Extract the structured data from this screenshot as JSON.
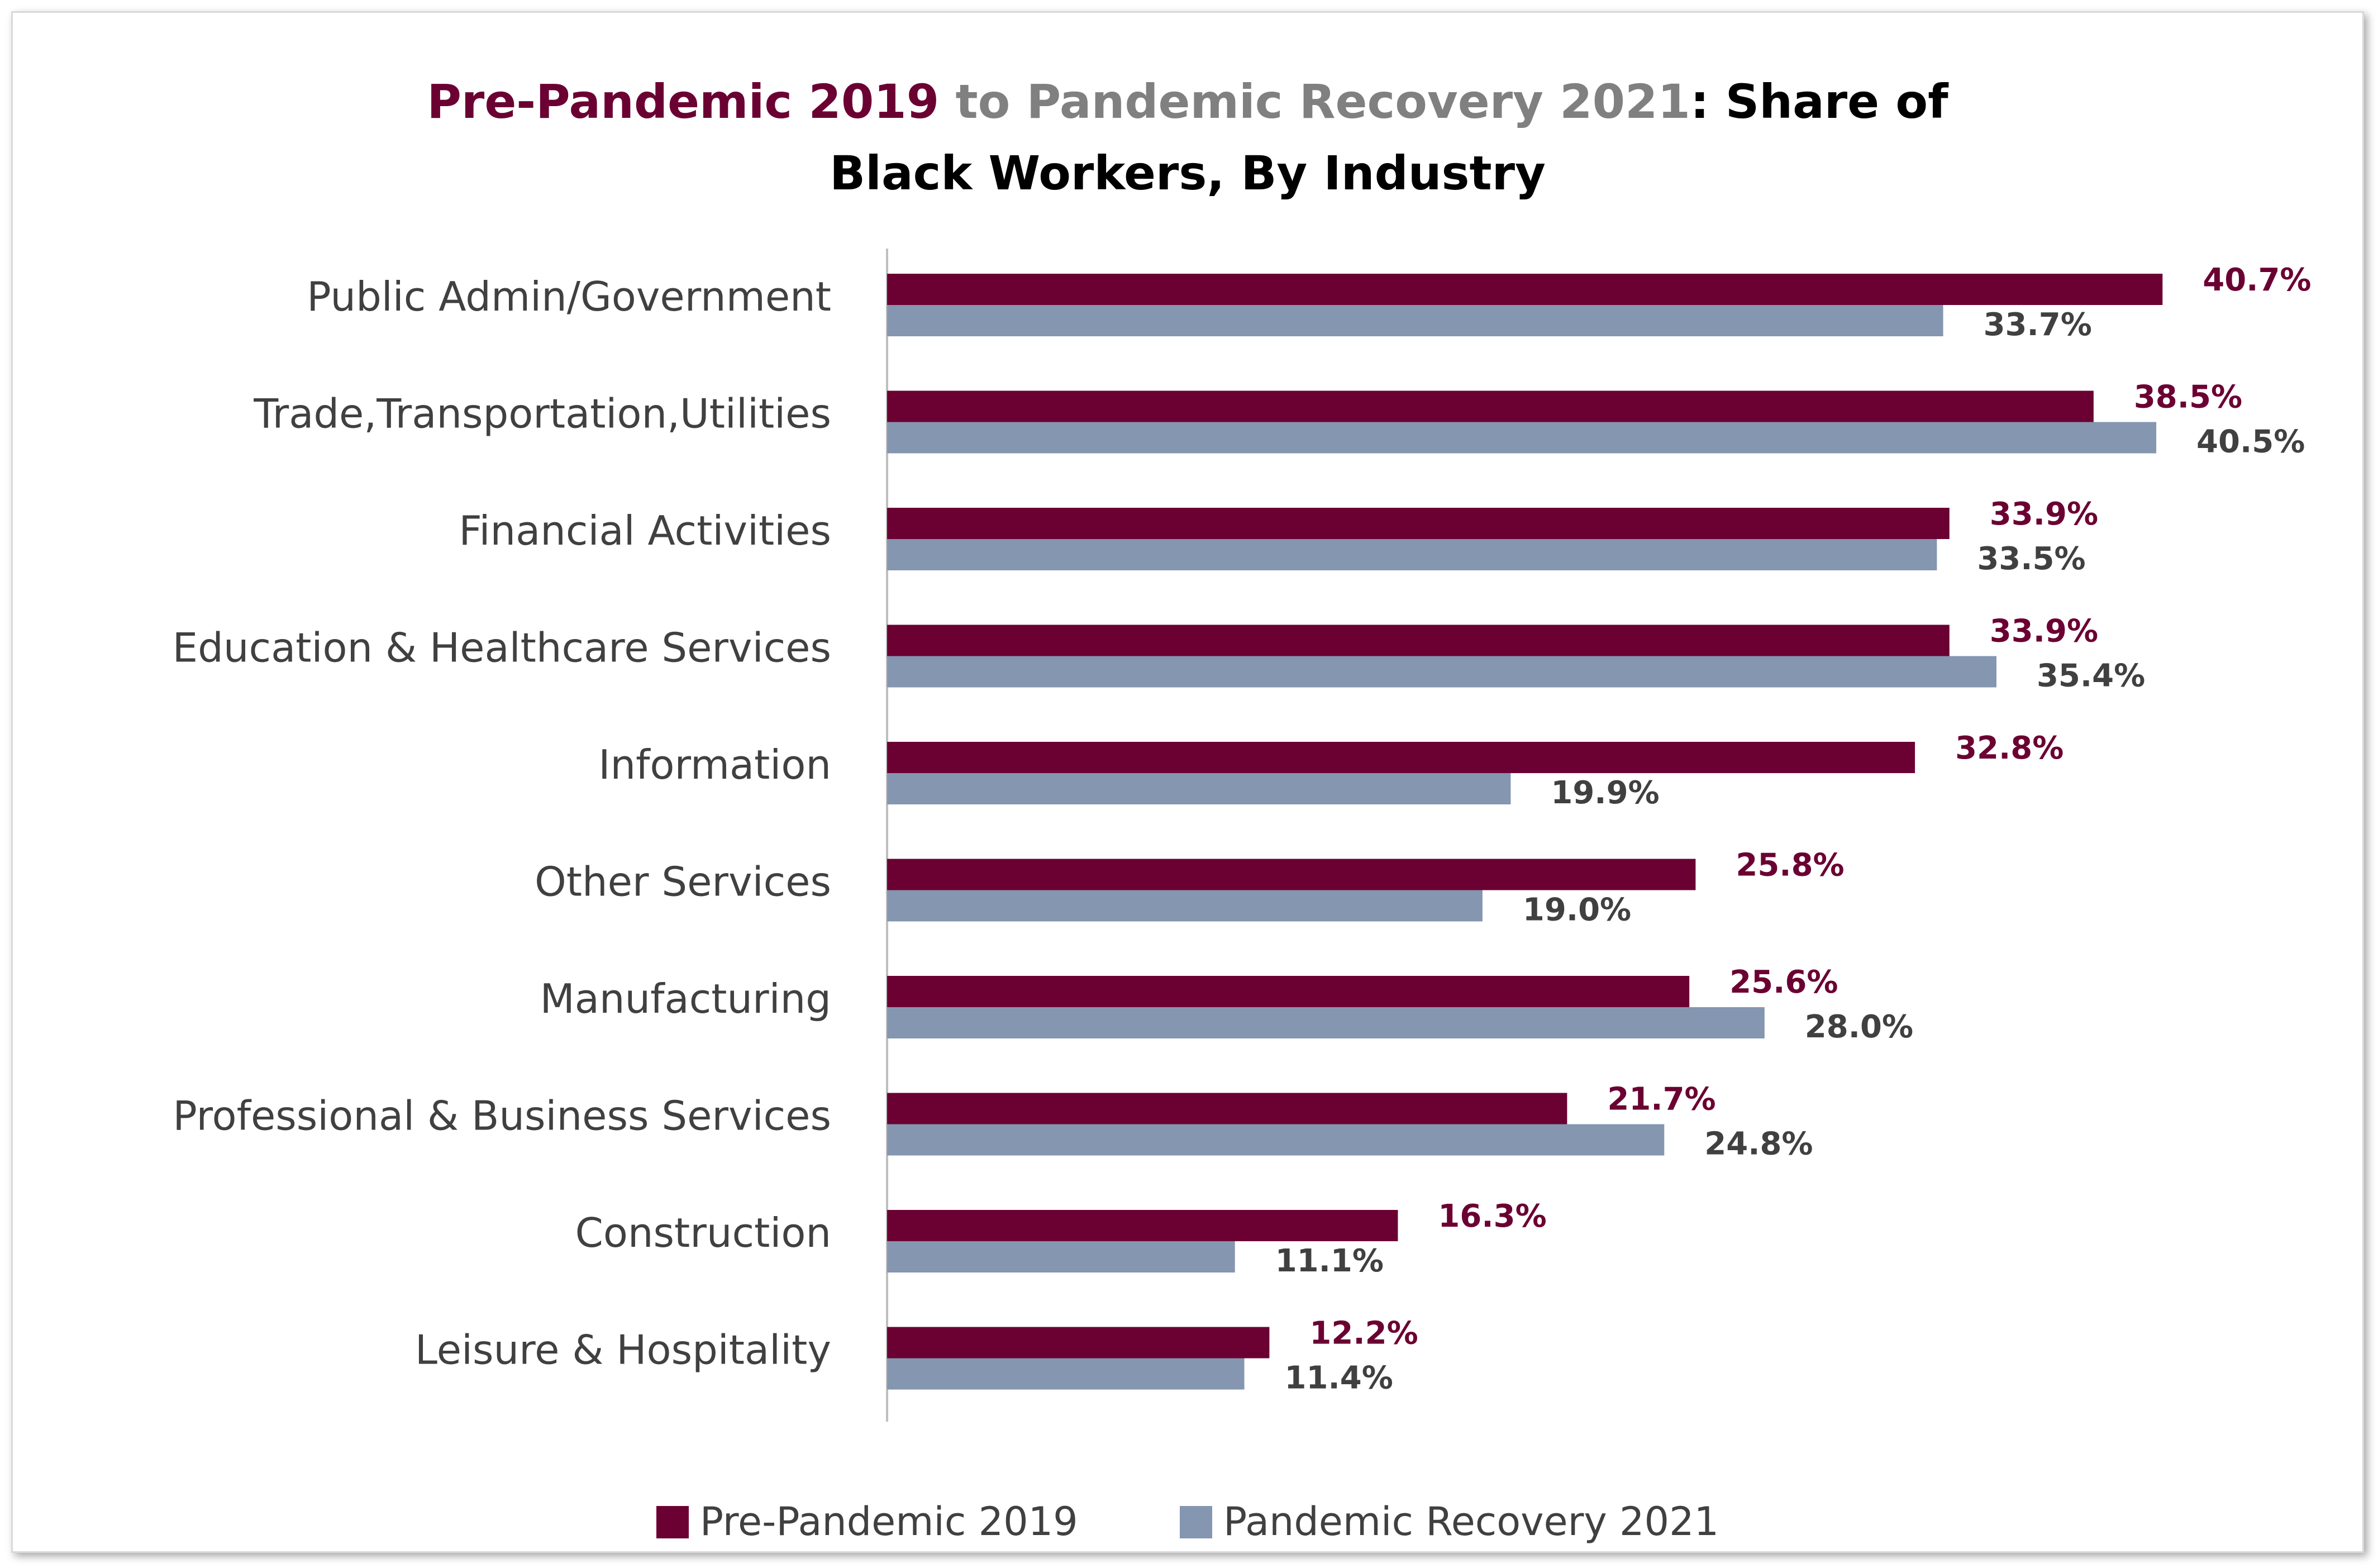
{
  "title": {
    "part1": "Pre-Pandemic 2019",
    "part2": "to",
    "part3": "Pandemic Recovery 2021",
    "part4": ": Share of",
    "line2": "Black Workers, By Industry"
  },
  "colors": {
    "pre": "#6b0032",
    "recovery": "#8496b0",
    "title_dark": "#000000",
    "title_grey": "#808080",
    "axis_text": "#404040",
    "label_pre": "#6b0032",
    "label_recovery": "#404040"
  },
  "legend": {
    "pre": "Pre-Pandemic 2019",
    "recovery": "Pandemic Recovery 2021"
  },
  "chart_data": {
    "type": "bar",
    "orientation": "horizontal",
    "categories": [
      "Public Admin/Government",
      "Trade,Transportation,Utilities",
      "Financial Activities",
      "Education & Healthcare Services",
      "Information",
      "Other Services",
      "Manufacturing",
      "Professional & Business Services",
      "Construction",
      "Leisure & Hospitality"
    ],
    "series": [
      {
        "name": "Pre-Pandemic 2019",
        "values": [
          40.7,
          38.5,
          33.9,
          33.9,
          32.8,
          25.8,
          25.6,
          21.7,
          16.3,
          12.2
        ],
        "labels": [
          "40.7%",
          "38.5%",
          "33.9%",
          "33.9%",
          "32.8%",
          "25.8%",
          "25.6%",
          "21.7%",
          "16.3%",
          "12.2%"
        ]
      },
      {
        "name": "Pandemic Recovery 2021",
        "values": [
          33.7,
          40.5,
          33.5,
          35.4,
          19.9,
          19.0,
          28.0,
          24.8,
          11.1,
          11.4
        ],
        "labels": [
          "33.7%",
          "40.5%",
          "33.5%",
          "35.4%",
          "19.9%",
          "19.0%",
          "28.0%",
          "24.8%",
          "11.1%",
          "11.4%"
        ]
      }
    ],
    "title": "Pre-Pandemic 2019 to Pandemic Recovery 2021: Share of Black Workers, By Industry",
    "xlabel": "",
    "ylabel": "",
    "xlim": [
      0,
      44
    ],
    "grid": false,
    "legend_position": "bottom"
  }
}
